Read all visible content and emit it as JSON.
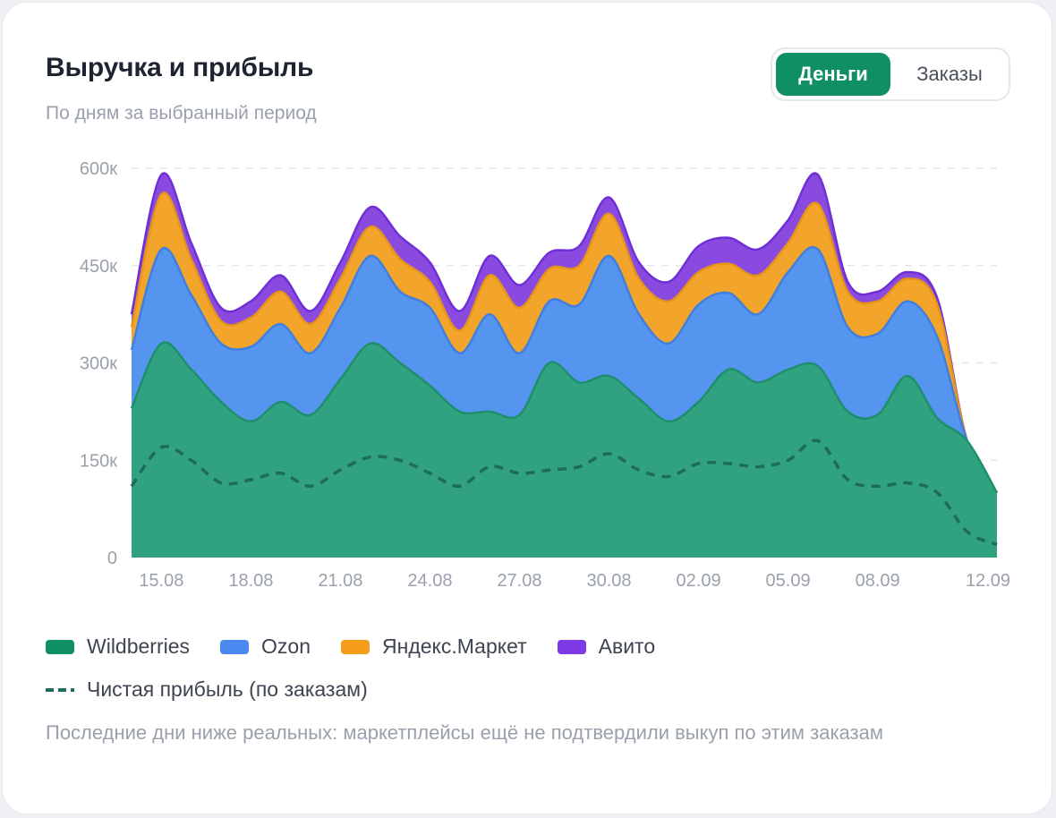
{
  "header": {
    "title": "Выручка и прибыль",
    "subtitle": "По дням за выбранный период"
  },
  "toggle": {
    "money_label": "Деньги",
    "orders_label": "Заказы",
    "active": "money"
  },
  "colors": {
    "wildberries": "#30a27f",
    "ozon": "#5595f0",
    "yandex": "#f3a42b",
    "avito": "#8a4ae0",
    "profit": "#1d6b5e",
    "grid": "#e3e6ea",
    "axis_text": "#9aa1ac"
  },
  "legend": {
    "wildberries": "Wildberries",
    "ozon": "Ozon",
    "yandex": "Яндекс.Маркет",
    "avito": "Авито",
    "profit": "Чистая прибыль (по заказам)"
  },
  "note": "Последние дни ниже реальных: маркетплейсы ещё не подтвердили выкуп по этим заказам",
  "chart_data": {
    "type": "area",
    "stacked": true,
    "x_tick_labels": [
      "15.08",
      "18.08",
      "21.08",
      "24.08",
      "27.08",
      "30.08",
      "02.09",
      "05.09",
      "08.09",
      "12.09"
    ],
    "y_ticks": [
      0,
      150000,
      300000,
      450000,
      600000
    ],
    "y_tick_labels": [
      "0",
      "150к",
      "300к",
      "450к",
      "600к"
    ],
    "ylim": [
      0,
      600000
    ],
    "x_start": "14.08",
    "x_days": 30,
    "series": [
      {
        "name": "Wildberries",
        "key": "wildberries",
        "values": [
          230000,
          330000,
          290000,
          240000,
          210000,
          240000,
          220000,
          275000,
          330000,
          300000,
          265000,
          225000,
          225000,
          220000,
          300000,
          270000,
          280000,
          245000,
          210000,
          240000,
          290000,
          270000,
          290000,
          295000,
          225000,
          220000,
          280000,
          215000,
          180000,
          100000
        ]
      },
      {
        "name": "Ozon",
        "key": "ozon",
        "values": [
          90000,
          145000,
          115000,
          90000,
          115000,
          120000,
          95000,
          110000,
          135000,
          110000,
          120000,
          90000,
          150000,
          95000,
          95000,
          120000,
          185000,
          130000,
          120000,
          150000,
          118000,
          105000,
          150000,
          180000,
          130000,
          125000,
          115000,
          125000,
          0,
          0
        ]
      },
      {
        "name": "Яндекс.Маркет",
        "key": "yandex",
        "values": [
          35000,
          85000,
          55000,
          35000,
          45000,
          50000,
          45000,
          45000,
          45000,
          50000,
          40000,
          35000,
          60000,
          70000,
          50000,
          60000,
          65000,
          55000,
          65000,
          50000,
          45000,
          60000,
          45000,
          70000,
          55000,
          50000,
          35000,
          50000,
          0,
          0
        ]
      },
      {
        "name": "Авито",
        "key": "avito",
        "values": [
          20000,
          30000,
          25000,
          20000,
          25000,
          25000,
          20000,
          25000,
          30000,
          35000,
          30000,
          30000,
          30000,
          35000,
          25000,
          30000,
          25000,
          25000,
          30000,
          40000,
          40000,
          40000,
          35000,
          45000,
          15000,
          15000,
          10000,
          10000,
          0,
          0
        ]
      }
    ],
    "line_series": {
      "name": "Чистая прибыль (по заказам)",
      "key": "profit",
      "values": [
        110000,
        170000,
        150000,
        115000,
        120000,
        130000,
        110000,
        135000,
        155000,
        150000,
        130000,
        110000,
        140000,
        130000,
        135000,
        140000,
        160000,
        135000,
        125000,
        145000,
        145000,
        140000,
        150000,
        180000,
        120000,
        110000,
        115000,
        100000,
        40000,
        20000
      ]
    }
  }
}
